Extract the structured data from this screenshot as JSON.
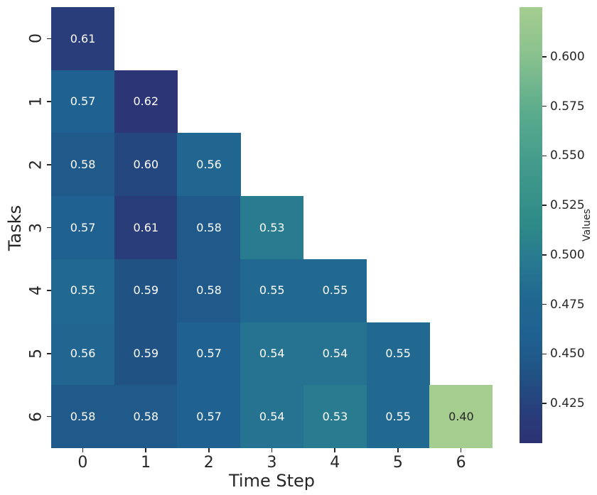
{
  "chart_data": {
    "type": "heatmap",
    "title": "",
    "xlabel": "Time Step",
    "ylabel": "Tasks",
    "x_ticks": [
      "0",
      "1",
      "2",
      "3",
      "4",
      "5",
      "6"
    ],
    "y_ticks": [
      "0",
      "1",
      "2",
      "3",
      "4",
      "5",
      "6"
    ],
    "rows": [
      [
        0.61
      ],
      [
        0.57,
        0.62
      ],
      [
        0.58,
        0.6,
        0.56
      ],
      [
        0.57,
        0.61,
        0.58,
        0.53
      ],
      [
        0.55,
        0.59,
        0.58,
        0.55,
        0.55
      ],
      [
        0.56,
        0.59,
        0.57,
        0.54,
        0.54,
        0.55
      ],
      [
        0.58,
        0.58,
        0.57,
        0.54,
        0.53,
        0.55,
        0.4
      ]
    ],
    "annotation_decimals": 2,
    "shape": "lower-triangular",
    "grid": false,
    "colorbar": {
      "label": "Values",
      "tick_labels": [
        "0.600",
        "0.575",
        "0.550",
        "0.525",
        "0.500",
        "0.475",
        "0.450",
        "0.425"
      ],
      "tick_values": [
        0.6,
        0.575,
        0.55,
        0.525,
        0.5,
        0.475,
        0.45,
        0.425
      ],
      "vmin": 0.405,
      "vmax": 0.625,
      "position": "right"
    },
    "colormap": {
      "name": "crest",
      "stops": [
        [
          0.0,
          "#a5cd90"
        ],
        [
          0.1,
          "#8dc38e"
        ],
        [
          0.24,
          "#5bac8d"
        ],
        [
          0.36,
          "#429b8c"
        ],
        [
          0.5,
          "#2e8a87"
        ],
        [
          0.575,
          "#287b90"
        ],
        [
          0.66,
          "#216990"
        ],
        [
          0.75,
          "#1f6292"
        ],
        [
          0.84,
          "#205384"
        ],
        [
          0.92,
          "#283f7c"
        ],
        [
          1.0,
          "#2d3273"
        ]
      ]
    },
    "annotation_text_colors": {
      "on_dark_cell": "#ffffff",
      "on_light_cell": "#262626"
    },
    "axis_text_color": "#262626",
    "background_color": "#ffffff"
  }
}
